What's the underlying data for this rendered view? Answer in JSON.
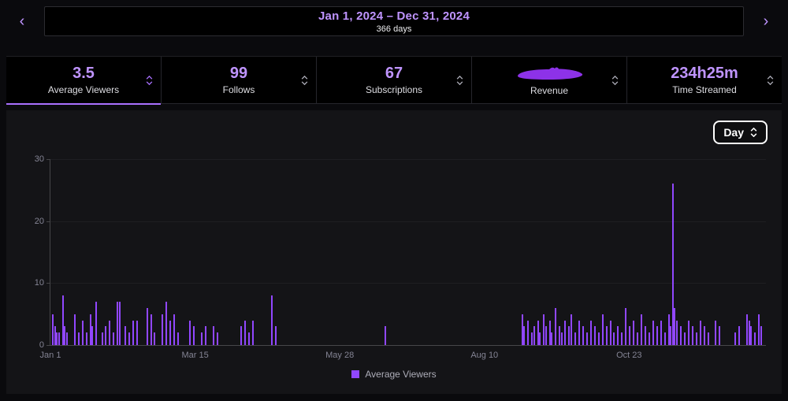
{
  "header": {
    "date_range": "Jan 1, 2024 – Dec 31, 2024",
    "days_count": "366 days",
    "prev_icon": "‹",
    "next_icon": "›"
  },
  "tabs": [
    {
      "value": "3.5",
      "label": "Average Viewers",
      "selected": true
    },
    {
      "value": "99",
      "label": "Follows",
      "selected": false
    },
    {
      "value": "67",
      "label": "Subscriptions",
      "selected": false
    },
    {
      "value": "",
      "label": "Revenue",
      "selected": false,
      "value_redacted": true
    },
    {
      "value": "234h25m",
      "label": "Time Streamed",
      "selected": false
    }
  ],
  "controls": {
    "interval_selector": "Day"
  },
  "legend": {
    "series": "Average Viewers"
  },
  "colors": {
    "accent_text": "#bf94ff",
    "tab_underline": "#a970ff",
    "bar": "#9147ff",
    "scribble": "#8d32e8",
    "panel_bg": "#141417",
    "axis": "#464649"
  },
  "chart_data": {
    "type": "bar",
    "title": "",
    "series_name": "Average Viewers",
    "xlabel": "",
    "ylabel": "",
    "x_tick_labels": [
      "Jan 1",
      "Mar 15",
      "May 28",
      "Aug 10",
      "Oct 23"
    ],
    "x_tick_days": [
      0,
      74,
      148,
      222,
      296
    ],
    "x_range_days": 366,
    "ylim": [
      0,
      30
    ],
    "y_ticks": [
      0,
      10,
      20,
      30
    ],
    "grid": "faint-horizontal",
    "legend_position": "bottom-center",
    "bar_color": "#9147ff",
    "bars": [
      [
        1,
        5
      ],
      [
        2,
        3
      ],
      [
        3,
        2
      ],
      [
        4,
        2
      ],
      [
        6,
        8
      ],
      [
        7,
        3
      ],
      [
        8,
        2
      ],
      [
        12,
        5
      ],
      [
        14,
        2
      ],
      [
        16,
        4
      ],
      [
        18,
        2
      ],
      [
        20,
        5
      ],
      [
        21,
        3
      ],
      [
        23,
        7
      ],
      [
        26,
        2
      ],
      [
        28,
        3
      ],
      [
        30,
        4
      ],
      [
        32,
        2
      ],
      [
        34,
        7
      ],
      [
        35,
        7
      ],
      [
        38,
        3
      ],
      [
        40,
        2
      ],
      [
        42,
        4
      ],
      [
        44,
        4
      ],
      [
        49,
        6
      ],
      [
        51,
        5
      ],
      [
        53,
        2
      ],
      [
        57,
        5
      ],
      [
        59,
        7
      ],
      [
        61,
        4
      ],
      [
        63,
        5
      ],
      [
        65,
        2
      ],
      [
        71,
        4
      ],
      [
        73,
        3
      ],
      [
        77,
        2
      ],
      [
        79,
        3
      ],
      [
        83,
        3
      ],
      [
        85,
        2
      ],
      [
        97,
        3
      ],
      [
        99,
        4
      ],
      [
        101,
        2
      ],
      [
        103,
        4
      ],
      [
        113,
        8
      ],
      [
        115,
        3
      ],
      [
        171,
        3
      ],
      [
        241,
        5
      ],
      [
        242,
        3
      ],
      [
        244,
        4
      ],
      [
        246,
        2
      ],
      [
        247,
        3
      ],
      [
        249,
        4
      ],
      [
        250,
        2
      ],
      [
        252,
        5
      ],
      [
        253,
        3
      ],
      [
        255,
        4
      ],
      [
        256,
        2
      ],
      [
        258,
        6
      ],
      [
        260,
        3
      ],
      [
        261,
        2
      ],
      [
        263,
        4
      ],
      [
        265,
        3
      ],
      [
        266,
        5
      ],
      [
        268,
        2
      ],
      [
        270,
        4
      ],
      [
        272,
        3
      ],
      [
        274,
        2
      ],
      [
        276,
        4
      ],
      [
        278,
        3
      ],
      [
        280,
        2
      ],
      [
        282,
        5
      ],
      [
        284,
        3
      ],
      [
        286,
        4
      ],
      [
        288,
        2
      ],
      [
        290,
        3
      ],
      [
        292,
        2
      ],
      [
        294,
        6
      ],
      [
        296,
        3
      ],
      [
        298,
        4
      ],
      [
        300,
        2
      ],
      [
        302,
        5
      ],
      [
        304,
        3
      ],
      [
        306,
        2
      ],
      [
        308,
        4
      ],
      [
        310,
        3
      ],
      [
        312,
        4
      ],
      [
        314,
        2
      ],
      [
        316,
        5
      ],
      [
        317,
        3
      ],
      [
        318,
        26
      ],
      [
        319,
        6
      ],
      [
        320,
        4
      ],
      [
        322,
        3
      ],
      [
        324,
        2
      ],
      [
        326,
        4
      ],
      [
        328,
        3
      ],
      [
        330,
        2
      ],
      [
        332,
        4
      ],
      [
        334,
        3
      ],
      [
        336,
        2
      ],
      [
        340,
        4
      ],
      [
        342,
        3
      ],
      [
        350,
        2
      ],
      [
        352,
        3
      ],
      [
        356,
        5
      ],
      [
        357,
        4
      ],
      [
        358,
        3
      ],
      [
        360,
        2
      ],
      [
        362,
        5
      ],
      [
        363,
        3
      ]
    ]
  }
}
